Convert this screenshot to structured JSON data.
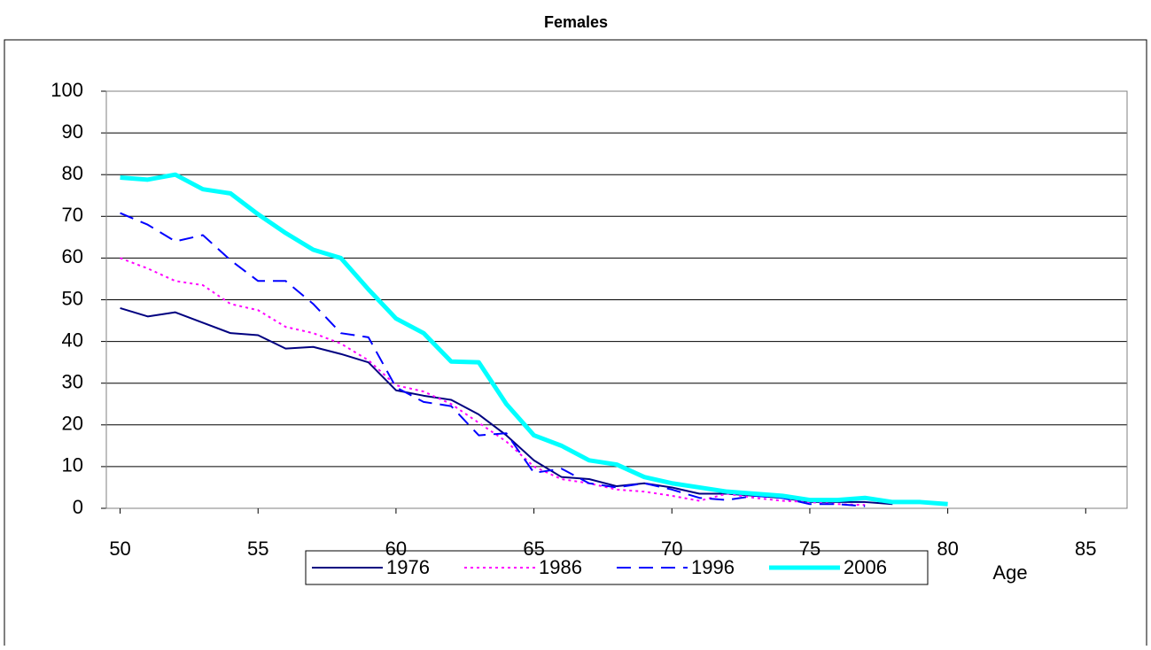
{
  "chart_data": {
    "type": "line",
    "title": "Females",
    "x_label": "Age",
    "x": [
      50,
      51,
      52,
      53,
      54,
      55,
      56,
      57,
      58,
      59,
      60,
      61,
      62,
      63,
      64,
      65,
      66,
      67,
      68,
      69,
      70,
      71,
      72,
      73,
      74,
      75,
      76,
      77,
      78,
      79,
      80
    ],
    "xlim": [
      49.5,
      86.5
    ],
    "xticks": [
      50,
      55,
      60,
      65,
      70,
      75,
      80,
      85
    ],
    "ylim": [
      0,
      100
    ],
    "yticks": [
      0,
      10,
      20,
      30,
      40,
      50,
      60,
      70,
      80,
      90,
      100
    ],
    "grid": true,
    "legend": "bottom",
    "series": [
      {
        "name": "1976",
        "color": "#000080",
        "dash": "solid",
        "width": 2,
        "values": [
          48,
          46,
          47,
          44.5,
          42,
          41.5,
          38.3,
          38.7,
          37,
          35,
          28.3,
          27,
          26,
          22.5,
          17.5,
          11.5,
          7.5,
          7,
          5.3,
          6,
          5,
          3.5,
          3.5,
          3,
          2.5,
          1.5,
          1.5,
          1.5,
          1,
          null,
          null
        ]
      },
      {
        "name": "1986",
        "color": "#ff00ff",
        "dash": "dotted",
        "width": 2,
        "values": [
          60,
          57.5,
          54.5,
          53.5,
          49,
          47.5,
          43.5,
          42,
          39.5,
          35.5,
          29.5,
          28,
          25,
          20.5,
          16,
          10,
          7,
          6,
          4.5,
          4,
          3,
          1.8,
          3.5,
          2.5,
          1.8,
          1.5,
          1,
          0.8,
          null,
          null,
          null
        ]
      },
      {
        "name": "1996",
        "color": "#0000ff",
        "dash": "dashed",
        "width": 2,
        "values": [
          70.8,
          68,
          64,
          65.5,
          59.5,
          54.5,
          54.5,
          49,
          42,
          41,
          29,
          25.5,
          24.5,
          17.5,
          18,
          8.5,
          9.5,
          6,
          5,
          6,
          4.5,
          2.5,
          2,
          3,
          2.5,
          1,
          1,
          0.5,
          null,
          null,
          null
        ]
      },
      {
        "name": "2006",
        "color": "#00ffff",
        "dash": "solid",
        "width": 5,
        "values": [
          79.3,
          78.8,
          80,
          76.5,
          75.5,
          70.5,
          66,
          62,
          60,
          52.5,
          45.5,
          42,
          35.2,
          35,
          25,
          17.5,
          15,
          11.5,
          10.5,
          7.5,
          6,
          5,
          4,
          3.5,
          3,
          2,
          2,
          2.5,
          1.5,
          1.5,
          1
        ]
      }
    ]
  }
}
